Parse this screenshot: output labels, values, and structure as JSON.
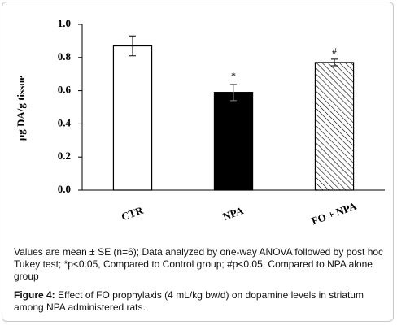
{
  "chart_data": {
    "type": "bar",
    "y_label": "μg DA/g tissue",
    "categories": [
      "CTR",
      "NPA",
      "FO + NPA"
    ],
    "values": [
      0.87,
      0.59,
      0.77
    ],
    "errors": [
      0.06,
      0.05,
      0.02
    ],
    "annotations": [
      null,
      "*",
      "#"
    ],
    "fills": [
      "#ffffff",
      "#000000",
      "hatched"
    ],
    "ylim": [
      0,
      1
    ],
    "yticks": [
      {
        "value": 0,
        "label": "0.0"
      },
      0.2,
      0.4,
      0.6,
      0.8,
      {
        "value": 1,
        "label": "1.0"
      }
    ]
  },
  "notes": "Values are mean ± SE (n=6); Data analyzed by one-way ANOVA followed by post hoc Tukey test; *p<0.05, Compared to Control group; #p<0.05, Compared to NPA alone group",
  "figure_label": "Figure 4:",
  "caption": "Effect of FO prophylaxis (4 mL/kg bw/d) on dopamine levels in striatum among NPA administered rats."
}
